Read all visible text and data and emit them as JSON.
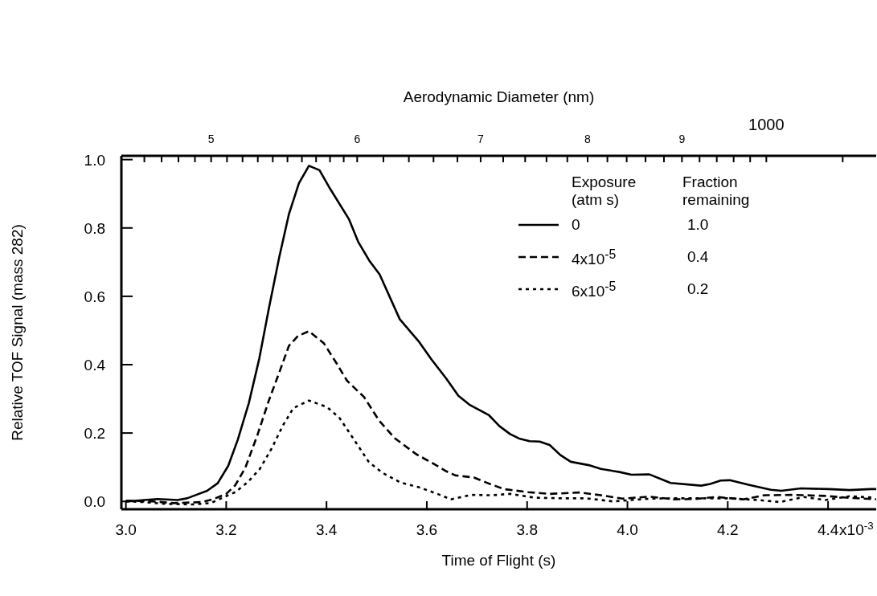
{
  "chart_data": {
    "type": "line",
    "xlabel": "Time of Flight (s)",
    "ylabel": "Relative TOF Signal (mass 282)",
    "x2label": "Aerodynamic Diameter (nm)",
    "legend_title": "Exposure (atm s)",
    "annotations": [
      "Fraction remaining",
      "1.0",
      "0.4",
      "0.2",
      "x10$^{-3}$",
      "1000"
    ],
    "legend": "top right",
    "grid": false,
    "marker": "none",
    "log": "x2",
    "xlim": [
      2.991,
      4.496
    ],
    "xticks": [
      {
        "value": 3.0,
        "label": "3.0"
      },
      3.2,
      3.4,
      3.6,
      3.8,
      {
        "value": 4.0,
        "label": "4.0"
      },
      4.2,
      4.4
    ],
    "ylim": [
      -0.023,
      1.011
    ],
    "yticks": [
      {
        "value": 0,
        "label": "0.0"
      },
      0.2,
      0.4,
      0.6,
      0.8,
      {
        "value": 1,
        "label": "1.0"
      }
    ],
    "x2lim": [
      4.47,
      11.47
    ],
    "x2ticks": [
      {
        "value": 4.6,
        "label": null
      },
      {
        "value": 4.7,
        "label": null
      },
      {
        "value": 4.8,
        "label": null
      },
      {
        "value": 4.9,
        "label": null
      },
      5,
      {
        "value": 5.1,
        "label": null
      },
      {
        "value": 5.2,
        "label": null
      },
      {
        "value": 5.3,
        "label": null
      },
      {
        "value": 5.4,
        "label": null
      },
      {
        "value": 5.5,
        "label": null
      },
      {
        "value": 5.6,
        "label": null
      },
      {
        "value": 5.7,
        "label": null
      },
      {
        "value": 5.8,
        "label": null
      },
      {
        "value": 5.9,
        "label": null
      },
      6,
      {
        "value": 6.2,
        "label": null
      },
      {
        "value": 6.4,
        "label": null
      },
      {
        "value": 6.6,
        "label": null
      },
      {
        "value": 6.8,
        "label": null
      },
      7,
      {
        "value": 7.2,
        "label": null
      },
      {
        "value": 7.4,
        "label": null
      },
      {
        "value": 7.6,
        "label": null
      },
      {
        "value": 7.8,
        "label": null
      },
      8,
      {
        "value": 8.2,
        "label": null
      },
      {
        "value": 8.4,
        "label": null
      },
      {
        "value": 8.6,
        "label": null
      },
      {
        "value": 8.8,
        "label": null
      },
      9,
      {
        "value": 9.2,
        "label": null
      },
      {
        "value": 9.4,
        "label": null
      },
      {
        "value": 9.6,
        "label": null
      },
      {
        "value": 9.8,
        "label": null
      },
      {
        "value": 10,
        "label": null
      },
      {
        "value": 11,
        "label": null
      }
    ],
    "series": [
      {
        "name": "0",
        "color": "#000000",
        "line_style": "solid",
        "x": [
          3.0,
          3.063,
          3.103,
          3.122,
          3.162,
          3.183,
          3.204,
          3.223,
          3.245,
          3.266,
          3.285,
          3.306,
          3.325,
          3.345,
          3.365,
          3.386,
          3.405,
          3.445,
          3.463,
          3.485,
          3.506,
          3.546,
          3.585,
          3.609,
          3.639,
          3.663,
          3.685,
          3.724,
          3.745,
          3.766,
          3.784,
          3.805,
          3.825,
          3.845,
          3.866,
          3.887,
          3.923,
          3.947,
          3.984,
          4.008,
          4.044,
          4.086,
          4.147,
          4.165,
          4.186,
          4.204,
          4.243,
          4.286,
          4.307,
          4.346,
          4.401,
          4.443,
          4.485,
          4.496
        ],
        "values": [
          0.0,
          0.007,
          0.004,
          0.009,
          0.031,
          0.053,
          0.104,
          0.18,
          0.287,
          0.418,
          0.564,
          0.716,
          0.84,
          0.931,
          0.982,
          0.969,
          0.92,
          0.825,
          0.76,
          0.705,
          0.664,
          0.533,
          0.466,
          0.416,
          0.359,
          0.309,
          0.283,
          0.252,
          0.22,
          0.197,
          0.184,
          0.176,
          0.175,
          0.165,
          0.136,
          0.116,
          0.106,
          0.095,
          0.086,
          0.078,
          0.079,
          0.054,
          0.046,
          0.051,
          0.061,
          0.062,
          0.048,
          0.034,
          0.031,
          0.038,
          0.036,
          0.033,
          0.036,
          0.036
        ]
      },
      {
        "name": "4x10$^{-5}$",
        "color": "#000000",
        "line_style": "dashed",
        "x": [
          3.0,
          3.053,
          3.096,
          3.151,
          3.175,
          3.2,
          3.218,
          3.238,
          3.262,
          3.285,
          3.307,
          3.325,
          3.343,
          3.365,
          3.395,
          3.42,
          3.441,
          3.475,
          3.505,
          3.536,
          3.579,
          3.615,
          3.639,
          3.657,
          3.694,
          3.724,
          3.754,
          3.802,
          3.845,
          3.905,
          3.947,
          3.99,
          4.044,
          4.092,
          4.135,
          4.177,
          4.231,
          4.274,
          4.334,
          4.394,
          4.436,
          4.496
        ],
        "values": [
          0.002,
          0.0,
          -0.005,
          -0.002,
          0.007,
          0.022,
          0.047,
          0.098,
          0.193,
          0.295,
          0.382,
          0.455,
          0.484,
          0.498,
          0.462,
          0.404,
          0.353,
          0.305,
          0.236,
          0.185,
          0.138,
          0.109,
          0.088,
          0.076,
          0.07,
          0.052,
          0.036,
          0.027,
          0.022,
          0.026,
          0.018,
          0.008,
          0.014,
          0.006,
          0.007,
          0.013,
          0.006,
          0.018,
          0.019,
          0.016,
          0.011,
          0.006
        ]
      },
      {
        "name": "6x10$^{-5}$",
        "color": "#000000",
        "line_style": "dotted",
        "x": [
          3.0,
          3.035,
          3.077,
          3.132,
          3.169,
          3.193,
          3.218,
          3.242,
          3.267,
          3.291,
          3.313,
          3.334,
          3.365,
          3.401,
          3.426,
          3.456,
          3.484,
          3.511,
          3.548,
          3.585,
          3.621,
          3.648,
          3.688,
          3.73,
          3.766,
          3.814,
          3.869,
          3.917,
          3.971,
          4.044,
          4.092,
          4.153,
          4.201,
          4.261,
          4.304,
          4.352,
          4.394,
          4.443,
          4.49
        ],
        "values": [
          0.0,
          -0.002,
          -0.007,
          -0.009,
          -0.005,
          0.011,
          0.027,
          0.055,
          0.095,
          0.156,
          0.222,
          0.273,
          0.295,
          0.276,
          0.244,
          0.178,
          0.116,
          0.084,
          0.055,
          0.041,
          0.022,
          0.006,
          0.019,
          0.018,
          0.022,
          0.011,
          0.009,
          0.009,
          0.0,
          0.008,
          0.009,
          0.009,
          0.009,
          0.004,
          -0.002,
          0.013,
          0.004,
          0.015,
          0.011
        ]
      }
    ]
  }
}
